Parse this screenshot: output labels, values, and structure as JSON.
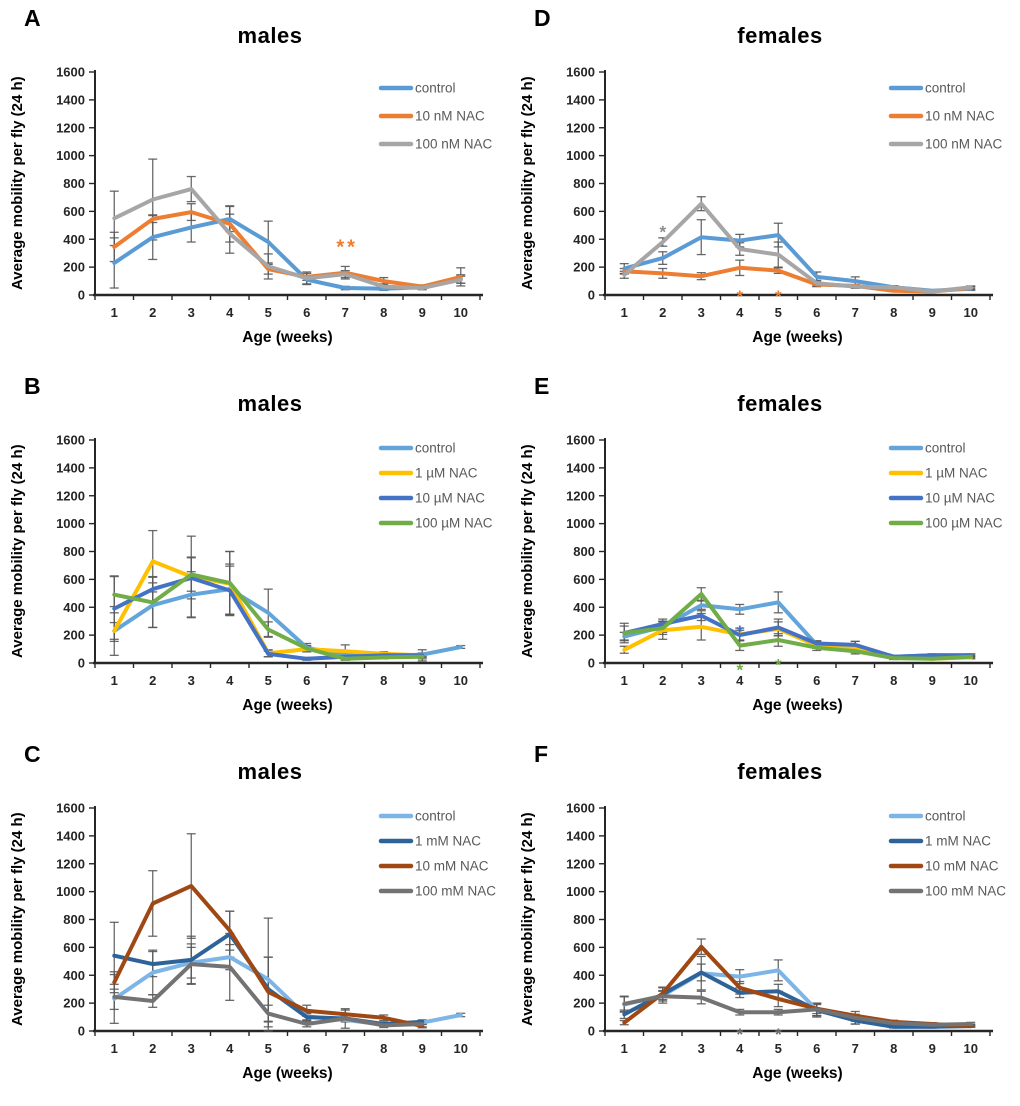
{
  "figure_caption": "",
  "axis": {
    "x_weeks": [
      1,
      2,
      3,
      4,
      5,
      6,
      7,
      8,
      9,
      10
    ],
    "ylim": [
      0,
      1600
    ],
    "ytick_step": 200
  },
  "chart_data": [
    {
      "type": "line",
      "panel": "A",
      "title": "males",
      "ylabel": "Average mobility per fly (24 h)",
      "xlabel": "Age (weeks)",
      "x": [
        1,
        2,
        3,
        4,
        5,
        6,
        7,
        8,
        9,
        10
      ],
      "ylim": [
        0,
        1600
      ],
      "series": [
        {
          "name": "control",
          "color": "#5B9BD5",
          "values": [
            230,
            415,
            485,
            545,
            380,
            110,
            50,
            45,
            55,
            115
          ],
          "err": [
            180,
            160,
            105,
            90,
            150,
            30,
            12,
            12,
            12,
            30
          ]
        },
        {
          "name": "10 nM NAC",
          "color": "#ED7D31",
          "values": [
            345,
            545,
            595,
            510,
            185,
            130,
            160,
            100,
            60,
            130
          ],
          "err": [
            105,
            25,
            60,
            130,
            35,
            25,
            45,
            25,
            12,
            65
          ]
        },
        {
          "name": "100 nM NAC",
          "color": "#A6A6A6",
          "values": [
            550,
            685,
            760,
            440,
            205,
            120,
            150,
            60,
            50,
            110
          ],
          "err": [
            195,
            290,
            90,
            140,
            90,
            45,
            25,
            20,
            12,
            25
          ]
        }
      ],
      "annotations": [
        {
          "text": "**",
          "color": "#ED7D31",
          "x": 7.05,
          "y": 430,
          "size": 20
        }
      ]
    },
    {
      "type": "line",
      "panel": "B",
      "title": "males",
      "ylabel": "Average mobility per fly (24 h)",
      "xlabel": "Age (weeks)",
      "x": [
        1,
        2,
        3,
        4,
        5,
        6,
        7,
        8,
        9,
        10
      ],
      "ylim": [
        0,
        1600
      ],
      "series": [
        {
          "name": "control",
          "color": "#63A5DB",
          "values": [
            230,
            415,
            490,
            530,
            360,
            110,
            55,
            50,
            60,
            115
          ],
          "err": [
            175,
            160,
            165,
            180,
            170,
            30,
            12,
            10,
            12,
            10
          ]
        },
        {
          "name": "1 µM NAC",
          "color": "#FFC000",
          "values": [
            230,
            730,
            620,
            570,
            70,
            100,
            85,
            65,
            55,
            null
          ],
          "err": [
            60,
            220,
            290,
            230,
            25,
            20,
            45,
            15,
            40,
            null
          ]
        },
        {
          "name": "10  µM NAC",
          "color": "#4472C4",
          "values": [
            390,
            530,
            610,
            520,
            65,
            30,
            45,
            55,
            55,
            null
          ],
          "err": [
            235,
            90,
            150,
            175,
            20,
            10,
            10,
            10,
            15,
            null
          ]
        },
        {
          "name": "100  µM NAC",
          "color": "#70AD47",
          "values": [
            490,
            435,
            635,
            575,
            240,
            105,
            30,
            40,
            45,
            null
          ],
          "err": [
            130,
            180,
            120,
            225,
            55,
            20,
            10,
            10,
            15,
            null
          ]
        }
      ],
      "annotations": []
    },
    {
      "type": "line",
      "panel": "C",
      "title": "males",
      "ylabel": "Average mobility per fly (24 h)",
      "xlabel": "Age (weeks)",
      "x": [
        1,
        2,
        3,
        4,
        5,
        6,
        7,
        8,
        9,
        10
      ],
      "ylim": [
        0,
        1600
      ],
      "series": [
        {
          "name": "control",
          "color": "#7CB5E6",
          "values": [
            230,
            420,
            490,
            530,
            370,
            105,
            80,
            45,
            60,
            115
          ],
          "err": [
            175,
            160,
            110,
            90,
            440,
            25,
            15,
            10,
            10,
            12
          ]
        },
        {
          "name": "1 mM NAC",
          "color": "#2E6399",
          "values": [
            540,
            480,
            510,
            695,
            300,
            100,
            90,
            50,
            65,
            null
          ],
          "err": [
            240,
            90,
            170,
            165,
            230,
            25,
            20,
            15,
            15,
            null
          ]
        },
        {
          "name": "10 mM NAC",
          "color": "#A04813",
          "values": [
            350,
            915,
            1040,
            720,
            280,
            145,
            120,
            95,
            35,
            null
          ],
          "err": [
            75,
            235,
            375,
            140,
            250,
            40,
            30,
            20,
            12,
            null
          ]
        },
        {
          "name": "100 mM NAC",
          "color": "#737373",
          "values": [
            245,
            215,
            480,
            460,
            125,
            50,
            90,
            40,
            50,
            null
          ],
          "err": [
            90,
            45,
            145,
            240,
            60,
            20,
            70,
            15,
            20,
            null
          ]
        }
      ],
      "annotations": []
    },
    {
      "type": "line",
      "panel": "D",
      "title": "females",
      "ylabel": "Average mobility per fly (24 h)",
      "xlabel": "Age (weeks)",
      "x": [
        1,
        2,
        3,
        4,
        5,
        6,
        7,
        8,
        9,
        10
      ],
      "ylim": [
        0,
        1600
      ],
      "series": [
        {
          "name": "control",
          "color": "#5B9BD5",
          "values": [
            190,
            265,
            415,
            390,
            430,
            130,
            100,
            55,
            30,
            45
          ],
          "err": [
            35,
            45,
            125,
            45,
            85,
            35,
            30,
            12,
            6,
            12
          ]
        },
        {
          "name": "10 nM NAC",
          "color": "#ED7D31",
          "values": [
            170,
            155,
            135,
            195,
            175,
            75,
            65,
            30,
            25,
            50
          ],
          "err": [
            20,
            35,
            25,
            55,
            20,
            15,
            10,
            6,
            6,
            10
          ]
        },
        {
          "name": "100 nM NAC",
          "color": "#A6A6A6",
          "values": [
            145,
            380,
            655,
            330,
            290,
            85,
            60,
            55,
            25,
            55
          ],
          "err": [
            25,
            30,
            50,
            45,
            90,
            20,
            12,
            10,
            6,
            10
          ]
        }
      ],
      "annotations": [
        {
          "text": "*",
          "color": "#8C8C8C",
          "x": 2,
          "y": 525,
          "size": 17
        },
        {
          "text": "*",
          "color": "#ED7D31",
          "x": 4,
          "y": 62,
          "size": 17
        },
        {
          "text": "*",
          "color": "#ED7D31",
          "x": 5,
          "y": 62,
          "size": 17
        }
      ]
    },
    {
      "type": "line",
      "panel": "E",
      "title": "females",
      "ylabel": "Average mobility per fly (24 h)",
      "xlabel": "Age (weeks)",
      "x": [
        1,
        2,
        3,
        4,
        5,
        6,
        7,
        8,
        9,
        10
      ],
      "ylim": [
        0,
        1600
      ],
      "series": [
        {
          "name": "control",
          "color": "#63A5DB",
          "values": [
            190,
            260,
            415,
            385,
            435,
            130,
            110,
            45,
            55,
            55
          ],
          "err": [
            30,
            40,
            30,
            35,
            75,
            25,
            20,
            10,
            10,
            10
          ]
        },
        {
          "name": "1 µM NAC",
          "color": "#FFC000",
          "values": [
            95,
            235,
            260,
            205,
            245,
            125,
            115,
            40,
            30,
            40
          ],
          "err": [
            25,
            65,
            95,
            45,
            50,
            20,
            40,
            10,
            6,
            10
          ]
        },
        {
          "name": "10  µM NAC",
          "color": "#4472C4",
          "values": [
            215,
            280,
            340,
            200,
            255,
            140,
            130,
            45,
            55,
            55
          ],
          "err": [
            70,
            35,
            35,
            35,
            60,
            20,
            25,
            10,
            10,
            10
          ]
        },
        {
          "name": "100  µM NAC",
          "color": "#70AD47",
          "values": [
            215,
            250,
            495,
            125,
            165,
            110,
            85,
            35,
            30,
            45
          ],
          "err": [
            50,
            45,
            45,
            35,
            45,
            20,
            20,
            10,
            6,
            10
          ]
        }
      ],
      "annotations": [
        {
          "text": "*",
          "color": "#4472C4",
          "x": 4,
          "y": 298,
          "size": 17
        },
        {
          "text": "*",
          "color": "#70AD47",
          "x": 4,
          "y": 22,
          "size": 17
        },
        {
          "text": "*",
          "color": "#70AD47",
          "x": 5,
          "y": 60,
          "size": 17
        }
      ]
    },
    {
      "type": "line",
      "panel": "F",
      "title": "females",
      "ylabel": "Average mobility per fly (24 h)",
      "xlabel": "Age (weeks)",
      "x": [
        1,
        2,
        3,
        4,
        5,
        6,
        7,
        8,
        9,
        10
      ],
      "ylim": [
        0,
        1600
      ],
      "series": [
        {
          "name": "control",
          "color": "#7CB5E6",
          "values": [
            190,
            255,
            415,
            390,
            435,
            150,
            80,
            30,
            30,
            40
          ],
          "err": [
            55,
            55,
            120,
            50,
            75,
            50,
            30,
            8,
            8,
            10
          ]
        },
        {
          "name": "1 mM NAC",
          "color": "#2E6399",
          "values": [
            120,
            265,
            420,
            275,
            285,
            150,
            75,
            30,
            30,
            35
          ],
          "err": [
            30,
            25,
            60,
            35,
            50,
            40,
            25,
            8,
            8,
            8
          ]
        },
        {
          "name": "10 mM NAC",
          "color": "#A04813",
          "values": [
            60,
            270,
            605,
            310,
            230,
            160,
            110,
            65,
            50,
            35
          ],
          "err": [
            15,
            45,
            55,
            45,
            55,
            35,
            30,
            12,
            10,
            8
          ]
        },
        {
          "name": "100 mM NAC",
          "color": "#737373",
          "values": [
            195,
            250,
            240,
            135,
            135,
            155,
            95,
            55,
            45,
            50
          ],
          "err": [
            55,
            35,
            45,
            20,
            20,
            45,
            25,
            15,
            10,
            12
          ]
        }
      ],
      "annotations": [
        {
          "text": "*",
          "color": "#6E6E6E",
          "x": 4,
          "y": 46,
          "size": 17
        },
        {
          "text": "*",
          "color": "#6E6E6E",
          "x": 5,
          "y": 46,
          "size": 17
        }
      ]
    }
  ]
}
